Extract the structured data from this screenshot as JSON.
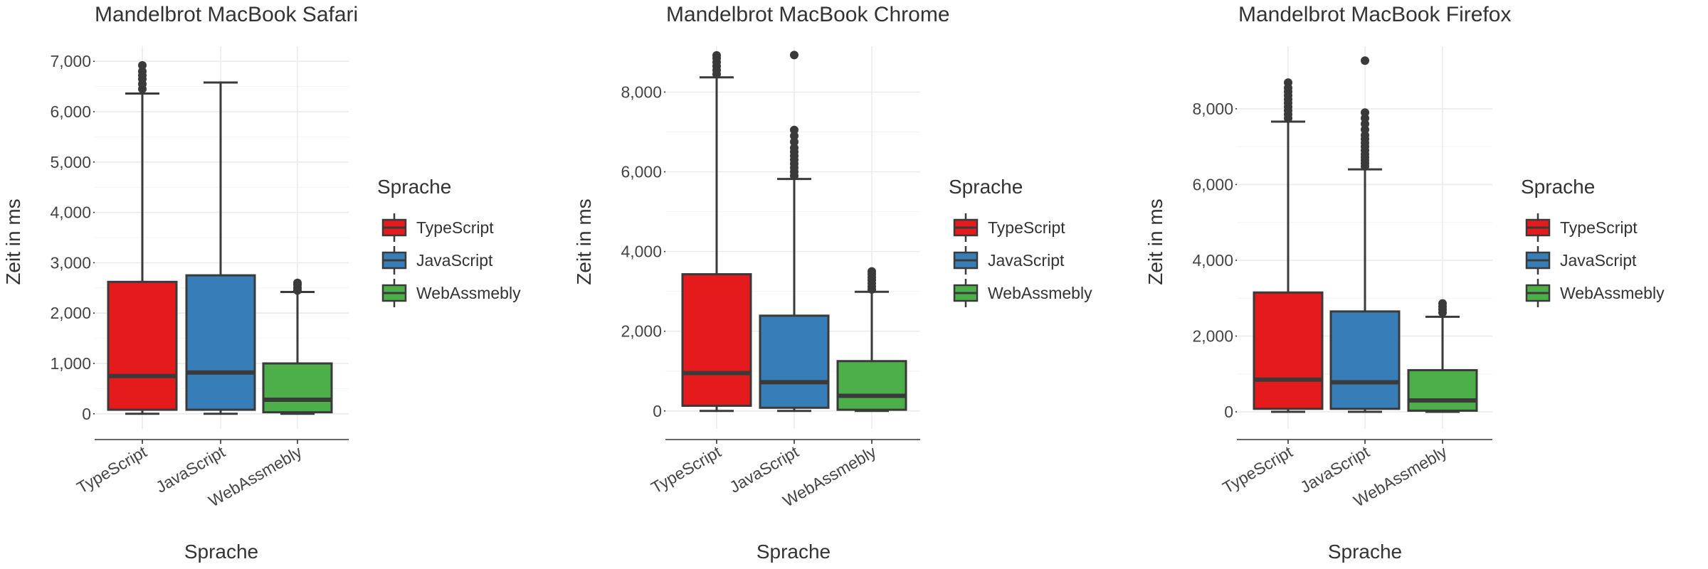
{
  "chart_data": [
    {
      "type": "boxplot",
      "title": "Mandelbrot MacBook Safari",
      "xlabel": "Sprache",
      "ylabel": "Zeit in ms",
      "ylim": [
        -300,
        7300
      ],
      "yticks": [
        0,
        1000,
        2000,
        3000,
        4000,
        5000,
        6000,
        7000
      ],
      "ytick_labels": [
        "0",
        "1,000",
        "2,000",
        "3,000",
        "4,000",
        "5,000",
        "6,000",
        "7,000"
      ],
      "categories": [
        "TypeScript",
        "JavaScript",
        "WebAssmebly"
      ],
      "boxes": [
        {
          "category": "TypeScript",
          "min": 0,
          "q1": 80,
          "median": 750,
          "q3": 2620,
          "max": 6360,
          "outliers": [
            6450,
            6550,
            6650,
            6720,
            6800,
            6920
          ]
        },
        {
          "category": "JavaScript",
          "min": 0,
          "q1": 80,
          "median": 820,
          "q3": 2750,
          "max": 6580,
          "outliers": []
        },
        {
          "category": "WebAssmebly",
          "min": 0,
          "q1": 30,
          "median": 280,
          "q3": 1000,
          "max": 2420,
          "outliers": [
            2450,
            2500,
            2560,
            2600
          ]
        }
      ],
      "legend_title": "Sprache",
      "legend_position": "right",
      "grid": true
    },
    {
      "type": "boxplot",
      "title": "Mandelbrot MacBook Chrome",
      "xlabel": "Sprache",
      "ylabel": "Zeit in ms",
      "ylim": [
        -450,
        9150
      ],
      "yticks": [
        0,
        2000,
        4000,
        6000,
        8000
      ],
      "ytick_labels": [
        "0",
        "2,000",
        "4,000",
        "6,000",
        "8,000"
      ],
      "categories": [
        "TypeScript",
        "JavaScript",
        "WebAssmebly"
      ],
      "boxes": [
        {
          "category": "TypeScript",
          "min": 0,
          "q1": 130,
          "median": 950,
          "q3": 3430,
          "max": 8370,
          "outliers": [
            8450,
            8550,
            8650,
            8750,
            8850,
            8920
          ]
        },
        {
          "category": "JavaScript",
          "min": 0,
          "q1": 80,
          "median": 720,
          "q3": 2390,
          "max": 5820,
          "outliers": [
            5900,
            6000,
            6100,
            6200,
            6300,
            6400,
            6500,
            6600,
            6750,
            6900,
            7050,
            8930
          ]
        },
        {
          "category": "WebAssmebly",
          "min": 0,
          "q1": 30,
          "median": 380,
          "q3": 1250,
          "max": 2990,
          "outliers": [
            3050,
            3120,
            3200,
            3280,
            3350,
            3430,
            3500
          ]
        }
      ],
      "legend_title": "Sprache",
      "legend_position": "right",
      "grid": true
    },
    {
      "type": "boxplot",
      "title": "Mandelbrot MacBook Firefox",
      "xlabel": "Sprache",
      "ylabel": "Zeit in ms",
      "ylim": [
        -450,
        9650
      ],
      "yticks": [
        0,
        2000,
        4000,
        6000,
        8000
      ],
      "ytick_labels": [
        "0",
        "2,000",
        "4,000",
        "6,000",
        "8,000"
      ],
      "categories": [
        "TypeScript",
        "JavaScript",
        "WebAssmebly"
      ],
      "boxes": [
        {
          "category": "TypeScript",
          "min": 0,
          "q1": 80,
          "median": 850,
          "q3": 3150,
          "max": 7660,
          "outliers": [
            7750,
            7850,
            7950,
            8050,
            8150,
            8250,
            8350,
            8450,
            8550,
            8690
          ]
        },
        {
          "category": "JavaScript",
          "min": 0,
          "q1": 80,
          "median": 780,
          "q3": 2650,
          "max": 6400,
          "outliers": [
            6480,
            6560,
            6640,
            6720,
            6800,
            6900,
            7000,
            7100,
            7200,
            7300,
            7450,
            7600,
            7750,
            7900,
            9270
          ]
        },
        {
          "category": "WebAssmebly",
          "min": 0,
          "q1": 30,
          "median": 300,
          "q3": 1100,
          "max": 2510,
          "outliers": [
            2620,
            2700,
            2780,
            2860
          ]
        }
      ],
      "legend_title": "Sprache",
      "legend_position": "right",
      "grid": true
    }
  ],
  "legend": {
    "title": "Sprache",
    "items": [
      {
        "label": "TypeScript",
        "color": "#e41a1c"
      },
      {
        "label": "JavaScript",
        "color": "#377eb8"
      },
      {
        "label": "WebAssmebly",
        "color": "#4daf4a"
      }
    ]
  },
  "colors": {
    "TypeScript": "#e41a1c",
    "JavaScript": "#377eb8",
    "WebAssmebly": "#4daf4a",
    "stroke": "#3a3a3a",
    "grid": "#ebebeb"
  }
}
